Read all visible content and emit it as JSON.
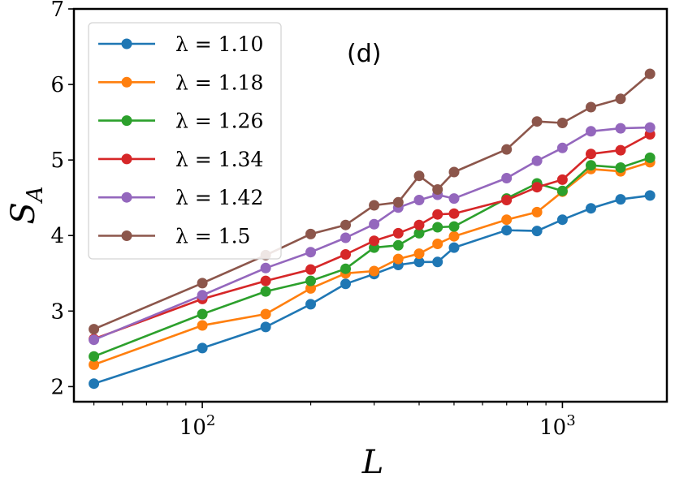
{
  "chart_data": {
    "type": "line",
    "panel_label": "(d)",
    "xlabel": "L",
    "ylabel": "S_A",
    "ylabel_main": "S",
    "ylabel_sub": "A",
    "xscale": "log",
    "xlim": [
      44,
      1950
    ],
    "ylim": [
      1.8,
      7.0
    ],
    "x_ticks": [
      {
        "value": 100,
        "base": "10",
        "exp": "2"
      },
      {
        "value": 1000,
        "base": "10",
        "exp": "3"
      }
    ],
    "y_ticks": [
      "2",
      "3",
      "4",
      "5",
      "6",
      "7"
    ],
    "legend_position": "upper-left",
    "grid": false,
    "x": [
      50,
      100,
      150,
      200,
      250,
      300,
      350,
      400,
      450,
      500,
      700,
      850,
      1000,
      1200,
      1450,
      1750
    ],
    "series": [
      {
        "name": "λ = 1.10",
        "color": "#1f77b4",
        "values": [
          2.04,
          2.51,
          2.79,
          3.09,
          3.36,
          3.49,
          3.61,
          3.65,
          3.65,
          3.84,
          4.07,
          4.06,
          4.21,
          4.36,
          4.48,
          4.53
        ]
      },
      {
        "name": "λ = 1.18",
        "color": "#ff7f0e",
        "values": [
          2.29,
          2.81,
          2.96,
          3.3,
          3.5,
          3.53,
          3.69,
          3.76,
          3.89,
          3.99,
          4.21,
          4.31,
          4.58,
          4.88,
          4.85,
          4.97
        ]
      },
      {
        "name": "λ = 1.26",
        "color": "#2ca02c",
        "values": [
          2.4,
          2.96,
          3.26,
          3.4,
          3.56,
          3.84,
          3.87,
          4.03,
          4.11,
          4.12,
          4.49,
          4.69,
          4.59,
          4.93,
          4.9,
          5.03
        ]
      },
      {
        "name": "λ = 1.34",
        "color": "#d62728",
        "values": [
          2.63,
          3.16,
          3.4,
          3.55,
          3.75,
          3.93,
          4.03,
          4.14,
          4.28,
          4.29,
          4.47,
          4.64,
          4.74,
          5.08,
          5.13,
          5.34
        ]
      },
      {
        "name": "λ = 1.42",
        "color": "#9467bd",
        "values": [
          2.62,
          3.21,
          3.57,
          3.78,
          3.97,
          4.15,
          4.37,
          4.47,
          4.54,
          4.49,
          4.76,
          4.99,
          5.16,
          5.38,
          5.42,
          5.43
        ]
      },
      {
        "name": "λ = 1.5",
        "color": "#8c564b",
        "values": [
          2.76,
          3.37,
          3.74,
          4.02,
          4.14,
          4.4,
          4.44,
          4.79,
          4.61,
          4.84,
          5.14,
          5.51,
          5.49,
          5.7,
          5.81,
          6.14
        ]
      }
    ]
  }
}
